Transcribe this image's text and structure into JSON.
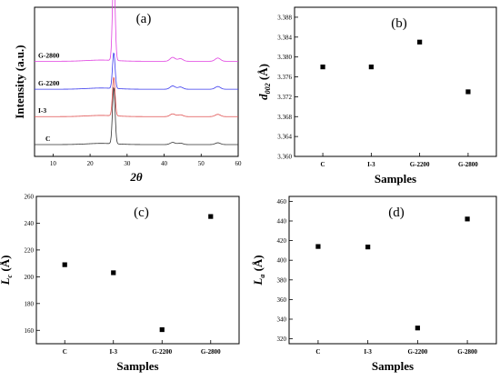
{
  "chart_data": [
    {
      "panel_label": "(a)",
      "type": "line",
      "xlabel": "2θ",
      "ylabel": "Intensity (a.u.)",
      "xlim": [
        5,
        60
      ],
      "xticks": [
        "10",
        "20",
        "30",
        "40",
        "50",
        "60"
      ],
      "series": [
        {
          "name": "C",
          "color": "#333333",
          "offset": 0,
          "peak_height": 0.95
        },
        {
          "name": "I-3",
          "color": "#e05050",
          "offset": 0.47,
          "peak_height": 0.65
        },
        {
          "name": "G-2200",
          "color": "#3a3aee",
          "offset": 0.93,
          "peak_height": 0.6
        },
        {
          "name": "G-2800",
          "color": "#e040e0",
          "offset": 1.4,
          "peak_height": 1.55
        }
      ],
      "peaks": [
        {
          "x": 26.4,
          "relative": 1.0
        },
        {
          "x": 42.3,
          "relative": 0.06
        },
        {
          "x": 44.4,
          "relative": 0.04
        },
        {
          "x": 54.5,
          "relative": 0.05
        }
      ]
    },
    {
      "panel_label": "(b)",
      "type": "scatter",
      "xlabel": "Samples",
      "ylabel": "d002 (Å)",
      "ylabel_main": "d",
      "ylabel_sub": "002",
      "ylabel_unit": " (Å)",
      "categories": [
        "C",
        "I-3",
        "G-2200",
        "G-2800"
      ],
      "values": [
        3.378,
        3.378,
        3.383,
        3.373
      ],
      "ylim": [
        3.36,
        3.39
      ],
      "yticks": [
        "3.360",
        "3.364",
        "3.368",
        "3.372",
        "3.376",
        "3.380",
        "3.384",
        "3.388"
      ]
    },
    {
      "panel_label": "(c)",
      "type": "scatter",
      "xlabel": "Samples",
      "ylabel": "Lc (Å)",
      "ylabel_main": "L",
      "ylabel_sub": "c",
      "ylabel_unit": " (Å)",
      "categories": [
        "C",
        "I-3",
        "G-2200",
        "G-2800"
      ],
      "values": [
        209,
        203,
        160.5,
        245
      ],
      "ylim": [
        150,
        260
      ],
      "yticks": [
        "160",
        "180",
        "200",
        "220",
        "240",
        "260"
      ]
    },
    {
      "panel_label": "(d)",
      "type": "scatter",
      "xlabel": "Samples",
      "ylabel": "La (Å)",
      "ylabel_main": "L",
      "ylabel_sub": "a",
      "ylabel_unit": " (Å)",
      "categories": [
        "C",
        "I-3",
        "G-2200",
        "G-2800"
      ],
      "values": [
        414,
        413.5,
        331,
        442
      ],
      "ylim": [
        315,
        465
      ],
      "yticks": [
        "320",
        "340",
        "360",
        "380",
        "400",
        "420",
        "440",
        "460"
      ]
    }
  ]
}
